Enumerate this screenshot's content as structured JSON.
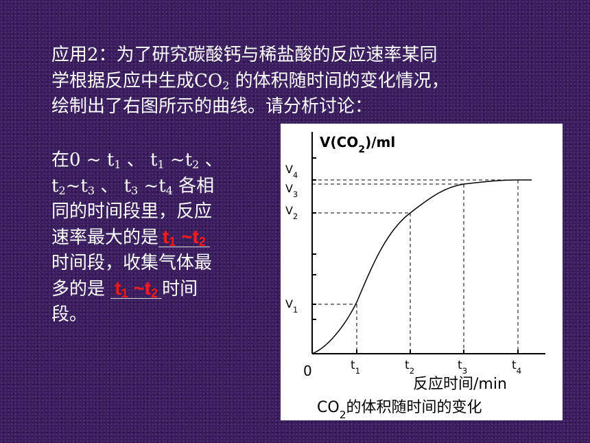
{
  "intro": {
    "lines": [
      [
        "应用2：为了研究碳酸钙与稀盐酸的反应速率某同"
      ],
      [
        "学根据反应中生成CO",
        "2",
        " 的体积随时间的变化情况，"
      ],
      [
        "绘制出了右图所示的曲线。请分析讨论："
      ]
    ]
  },
  "question": {
    "lines": [
      [
        "在0 ~ t",
        "1",
        " 、 t",
        "1",
        " ~t",
        "2",
        " 、"
      ],
      [
        "t",
        "2",
        "~t",
        "3",
        " 、 t",
        "3",
        " ~t",
        "4",
        " 各相"
      ],
      [
        "同的时间段里，反应"
      ],
      [
        "速率最大的是"
      ],
      [
        "时间段，收集气体最"
      ],
      [
        "多的是 "
      ],
      [
        "段。"
      ]
    ],
    "answer1": [
      "t",
      "1",
      " ~t",
      "2"
    ],
    "answer2": [
      "t",
      "1",
      " ~t",
      "2"
    ],
    "after_answer2": [
      "时间"
    ]
  },
  "figure": {
    "y_label": [
      "V(CO",
      "2",
      ")/ml"
    ],
    "v_labels": [
      [
        "V",
        "4"
      ],
      [
        "V",
        "3"
      ],
      [
        "V",
        "2"
      ],
      [
        "V",
        "1"
      ]
    ],
    "t_labels": [
      [
        "t",
        "1"
      ],
      [
        "t",
        "2"
      ],
      [
        "t",
        "3"
      ],
      [
        "t",
        "4"
      ]
    ],
    "origin": "0",
    "x_label": "反应时间/min",
    "caption": [
      "CO",
      "2",
      "的体积随时间的变化"
    ]
  }
}
